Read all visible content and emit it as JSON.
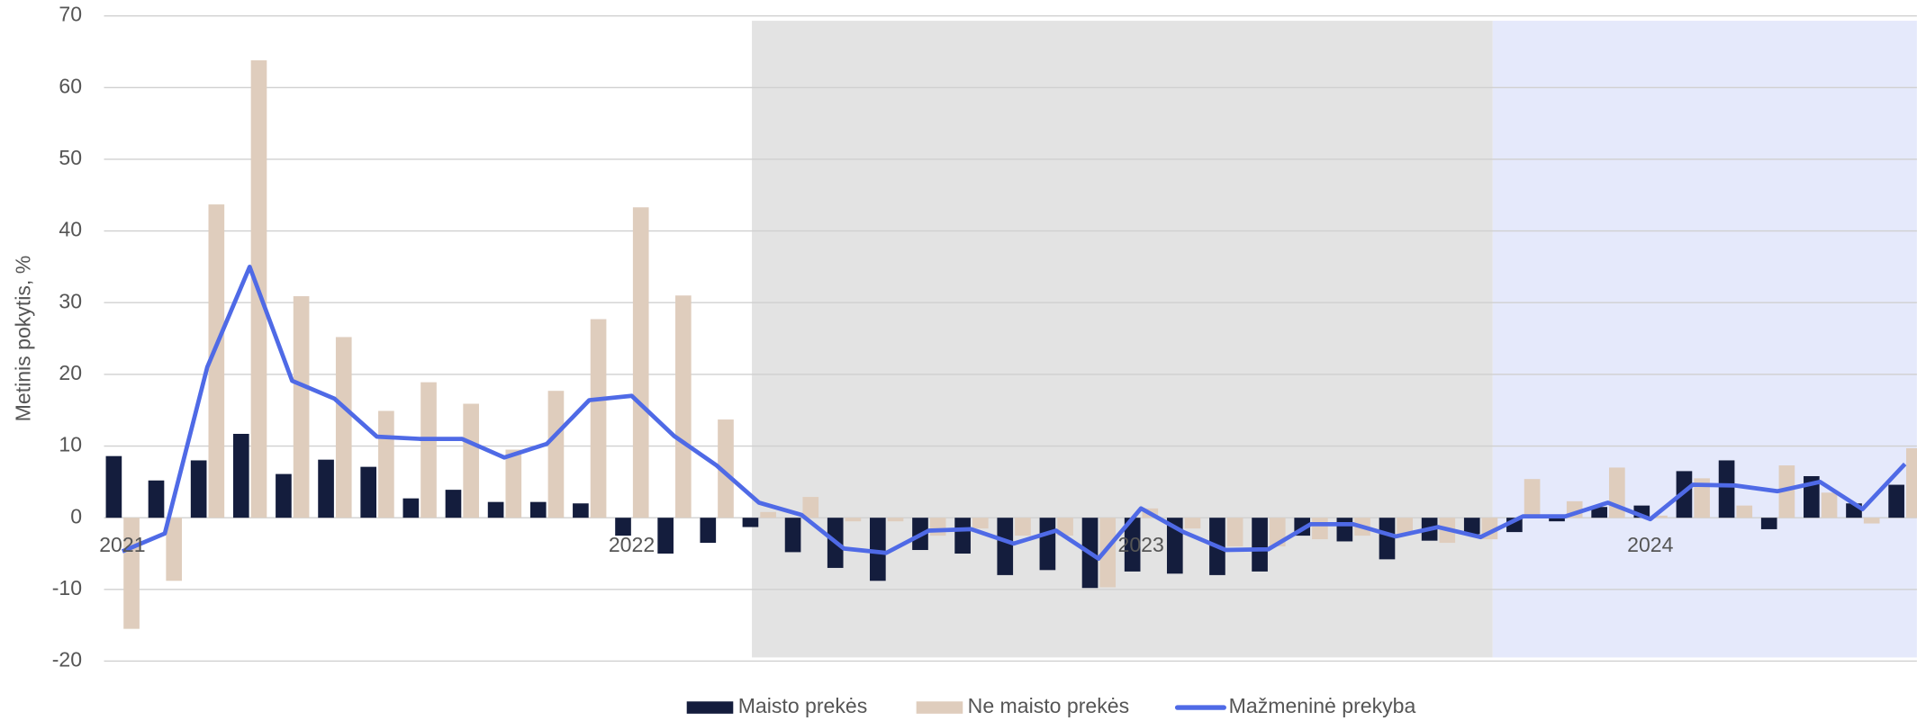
{
  "chart_data": {
    "type": "bar_line",
    "y_label": "Metinis pokytis, %",
    "categories": [
      "2021",
      null,
      null,
      null,
      null,
      null,
      null,
      null,
      null,
      null,
      null,
      null,
      "2022",
      null,
      null,
      null,
      null,
      null,
      null,
      null,
      null,
      null,
      null,
      null,
      "2023",
      null,
      null,
      null,
      null,
      null,
      null,
      null,
      null,
      null,
      null,
      null,
      "2024",
      null,
      null,
      null,
      null,
      null,
      null
    ],
    "ylim": [
      -20,
      70
    ],
    "yticks": [
      -20,
      -10,
      0,
      10,
      20,
      30,
      40,
      50,
      60,
      70
    ],
    "grid": true,
    "legend": "bottom",
    "series": [
      {
        "name": "Maisto prekės",
        "kind": "bar",
        "color": "#141d3d",
        "values": [
          8.6,
          5.2,
          8.0,
          11.7,
          6.1,
          8.1,
          7.1,
          2.7,
          3.9,
          2.2,
          2.2,
          2.0,
          -2.5,
          -5.0,
          -3.5,
          -1.3,
          -4.8,
          -7.0,
          -8.8,
          -4.5,
          -5.0,
          -8.0,
          -7.3,
          -9.8,
          -7.5,
          -7.8,
          -8.0,
          -7.5,
          -2.5,
          -3.3,
          -5.8,
          -3.2,
          -2.3,
          -2.0,
          -0.5,
          1.5,
          1.7,
          6.5,
          8.0,
          -1.6,
          5.8,
          2.0,
          4.6
        ]
      },
      {
        "name": "Ne maisto prekės",
        "kind": "bar",
        "color": "#dfcdbd",
        "values": [
          -15.5,
          -8.8,
          43.7,
          63.8,
          30.9,
          25.2,
          14.9,
          18.9,
          15.9,
          9.5,
          17.7,
          27.7,
          43.3,
          31.0,
          13.7,
          0.8,
          2.9,
          -0.5,
          -0.5,
          -2.5,
          -1.5,
          -2.5,
          -2.5,
          -9.7,
          1.3,
          -1.5,
          -4.0,
          -4.0,
          -3.0,
          -2.5,
          -2.3,
          -3.5,
          -3.0,
          5.4,
          2.3,
          7.0,
          0.3,
          5.5,
          1.7,
          7.3,
          3.5,
          -0.8,
          9.7
        ]
      },
      {
        "name": "Mažmeninė prekyba",
        "kind": "line",
        "color": "#4f6ae6",
        "values": [
          -4.7,
          -2.2,
          21.0,
          35.0,
          19.1,
          16.6,
          11.3,
          11.0,
          11.0,
          8.4,
          10.3,
          16.4,
          17.0,
          11.4,
          7.3,
          2.1,
          0.4,
          -4.3,
          -4.9,
          -1.8,
          -1.6,
          -3.6,
          -1.8,
          -5.7,
          1.3,
          -2.0,
          -4.5,
          -4.4,
          -0.9,
          -0.9,
          -2.6,
          -1.3,
          -2.7,
          0.2,
          0.2,
          2.1,
          -0.2,
          4.6,
          4.5,
          3.7,
          5.0,
          1.2,
          7.5
        ]
      }
    ]
  }
}
